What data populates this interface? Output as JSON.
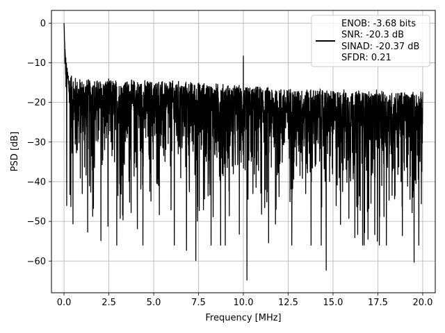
{
  "chart_data": {
    "type": "line",
    "title": "",
    "xlabel": "Frequency [MHz]",
    "ylabel": "PSD [dB]",
    "xlim": [
      -0.7,
      20.7
    ],
    "ylim": [
      -68,
      3.2
    ],
    "grid": true,
    "legend_position": "top-right",
    "x_ticks": [
      0.0,
      2.5,
      5.0,
      7.5,
      10.0,
      12.5,
      15.0,
      17.5,
      20.0
    ],
    "x_tick_labels": [
      "0.0",
      "2.5",
      "5.0",
      "7.5",
      "10.0",
      "12.5",
      "15.0",
      "17.5",
      "20.0"
    ],
    "y_ticks": [
      0,
      -10,
      -20,
      -30,
      -40,
      -50,
      -60
    ],
    "y_tick_labels": [
      "0",
      "−10",
      "−20",
      "−30",
      "−40",
      "−50",
      "−60"
    ],
    "series": [
      {
        "color": "#000000",
        "legend_lines": [
          "ENOB: -3.68 bits",
          "SNR: -20.3 dB",
          "SINAD: -20.37 dB",
          "SFDR: 0.21"
        ],
        "baseline_points": [
          [
            0.0,
            0.0
          ],
          [
            0.03,
            -3.5
          ],
          [
            0.08,
            -8.0
          ],
          [
            0.15,
            -11.0
          ],
          [
            0.3,
            -13.0
          ],
          [
            0.6,
            -14.0
          ],
          [
            1.0,
            -14.5
          ],
          [
            3.0,
            -14.7
          ],
          [
            6.0,
            -15.0
          ],
          [
            8.0,
            -15.5
          ],
          [
            10.0,
            -16.2
          ],
          [
            12.5,
            -16.8
          ],
          [
            15.0,
            -17.2
          ],
          [
            17.5,
            -17.5
          ],
          [
            20.0,
            -17.8
          ]
        ],
        "notable_peaks": [
          {
            "x": 10.0,
            "y": -8.3
          }
        ],
        "notable_dips": [
          {
            "x": 0.15,
            "y": -46.0
          },
          {
            "x": 1.32,
            "y": -52.7
          },
          {
            "x": 6.83,
            "y": -57.3
          },
          {
            "x": 7.35,
            "y": -59.9
          },
          {
            "x": 10.2,
            "y": -64.8
          },
          {
            "x": 14.62,
            "y": -62.3
          },
          {
            "x": 19.52,
            "y": -60.3
          },
          {
            "x": 16.95,
            "y": -54.5
          }
        ]
      }
    ]
  }
}
